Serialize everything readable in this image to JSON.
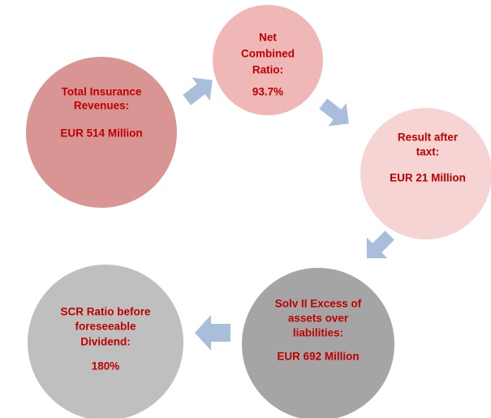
{
  "nodes": [
    {
      "label": [
        "Total Insurance",
        "Revenues:"
      ],
      "value": "EUR 514 Million"
    },
    {
      "label": [
        "Net",
        "Combined",
        "Ratio:"
      ],
      "value": "93.7%"
    },
    {
      "label": [
        "Result after",
        "taxt:"
      ],
      "value": "EUR 21 Million"
    },
    {
      "label": [
        "Solv II Excess of",
        "assets over",
        "liabilities:"
      ],
      "value": "EUR 692 Million"
    },
    {
      "label": [
        "SCR Ratio before",
        "foreseeable",
        "Dividend:"
      ],
      "value": "180%"
    }
  ]
}
